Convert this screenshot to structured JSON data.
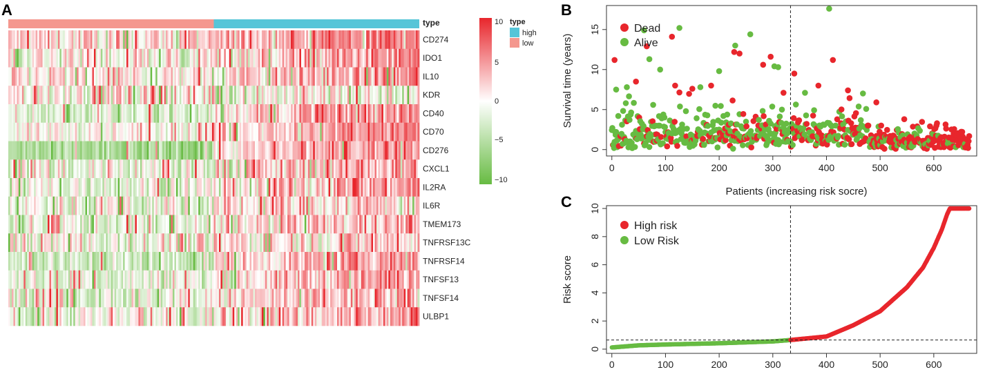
{
  "panels": {
    "a": "A",
    "b": "B",
    "c": "C"
  },
  "colors": {
    "high": "#56c5d8",
    "low": "#f4978e",
    "red": "#e8262c",
    "green": "#67bb42",
    "neutral": "#ffffff"
  },
  "chart_data": [
    {
      "type": "heatmap",
      "panel": "A",
      "annotation_label": "type",
      "type_legend": {
        "title": "type",
        "items": [
          "high",
          "low"
        ]
      },
      "colorbar": {
        "max_label": "10",
        "mid_high_label": "5",
        "zero_label": "0",
        "mid_low_label": "−5",
        "min_label": "−10",
        "range": [
          -10,
          10
        ]
      },
      "groups": [
        {
          "name": "low",
          "fraction": 0.5
        },
        {
          "name": "high",
          "fraction": 0.5
        }
      ],
      "rows": [
        {
          "gene": "CD274",
          "low_level": 0.15,
          "high_level": 0.5,
          "noise": 0.45
        },
        {
          "gene": "IDO1",
          "low_level": 0.05,
          "high_level": 0.35,
          "noise": 0.5
        },
        {
          "gene": "IL10",
          "low_level": 0.08,
          "high_level": 0.35,
          "noise": 0.5
        },
        {
          "gene": "KDR",
          "low_level": 0.1,
          "high_level": -0.05,
          "noise": 0.6
        },
        {
          "gene": "CD40",
          "low_level": -0.2,
          "high_level": 0.5,
          "noise": 0.4
        },
        {
          "gene": "CD70",
          "low_level": 0.0,
          "high_level": 0.45,
          "noise": 0.35
        },
        {
          "gene": "CD276",
          "low_level": -0.55,
          "high_level": 0.55,
          "noise": 0.35
        },
        {
          "gene": "CXCL1",
          "low_level": -0.1,
          "high_level": 0.35,
          "noise": 0.55
        },
        {
          "gene": "IL2RA",
          "low_level": -0.1,
          "high_level": 0.4,
          "noise": 0.5
        },
        {
          "gene": "IL6R",
          "low_level": -0.05,
          "high_level": 0.25,
          "noise": 0.55
        },
        {
          "gene": "TMEM173",
          "low_level": -0.15,
          "high_level": 0.3,
          "noise": 0.5
        },
        {
          "gene": "TNFRSF13C",
          "low_level": 0.0,
          "high_level": 0.2,
          "noise": 0.55
        },
        {
          "gene": "TNFRSF14",
          "low_level": -0.3,
          "high_level": 0.5,
          "noise": 0.4
        },
        {
          "gene": "TNFSF13",
          "low_level": -0.15,
          "high_level": 0.4,
          "noise": 0.45
        },
        {
          "gene": "TNFSF14",
          "low_level": -0.1,
          "high_level": 0.3,
          "noise": 0.5
        },
        {
          "gene": "ULBP1",
          "low_level": -0.1,
          "high_level": 0.35,
          "noise": 0.5
        }
      ]
    },
    {
      "type": "scatter",
      "panel": "B",
      "title": "",
      "xlabel": "Patients (increasing risk socre)",
      "ylabel": "Survival time (years)",
      "xlim": [
        -10,
        680
      ],
      "ylim": [
        -0.8,
        18
      ],
      "xticks": [
        0,
        100,
        200,
        300,
        400,
        500,
        600
      ],
      "yticks": [
        0,
        5,
        10,
        15
      ],
      "cutoff_x": 333,
      "n_patients": 667,
      "legend": [
        {
          "name": "Dead",
          "color": "#e8262c"
        },
        {
          "name": "Alive",
          "color": "#67bb42"
        }
      ],
      "highlights": [
        {
          "x": 5,
          "y": 11.2,
          "status": "Dead"
        },
        {
          "x": 8,
          "y": 7.5,
          "status": "Alive"
        },
        {
          "x": 28,
          "y": 7.8,
          "status": "Alive"
        },
        {
          "x": 45,
          "y": 8.5,
          "status": "Dead"
        },
        {
          "x": 60,
          "y": 14.9,
          "status": "Alive"
        },
        {
          "x": 65,
          "y": 12.9,
          "status": "Dead"
        },
        {
          "x": 70,
          "y": 11.3,
          "status": "Alive"
        },
        {
          "x": 90,
          "y": 10.0,
          "status": "Alive"
        },
        {
          "x": 112,
          "y": 14.1,
          "status": "Dead"
        },
        {
          "x": 126,
          "y": 15.2,
          "status": "Alive"
        },
        {
          "x": 118,
          "y": 8.0,
          "status": "Dead"
        },
        {
          "x": 150,
          "y": 7.6,
          "status": "Dead"
        },
        {
          "x": 165,
          "y": 7.8,
          "status": "Alive"
        },
        {
          "x": 185,
          "y": 8.0,
          "status": "Dead"
        },
        {
          "x": 200,
          "y": 9.8,
          "status": "Alive"
        },
        {
          "x": 228,
          "y": 12.2,
          "status": "Dead"
        },
        {
          "x": 230,
          "y": 13.0,
          "status": "Alive"
        },
        {
          "x": 238,
          "y": 12.0,
          "status": "Dead"
        },
        {
          "x": 258,
          "y": 14.4,
          "status": "Alive"
        },
        {
          "x": 282,
          "y": 10.6,
          "status": "Dead"
        },
        {
          "x": 296,
          "y": 11.6,
          "status": "Dead"
        },
        {
          "x": 303,
          "y": 10.4,
          "status": "Alive"
        },
        {
          "x": 310,
          "y": 10.3,
          "status": "Alive"
        },
        {
          "x": 320,
          "y": 7.1,
          "status": "Dead"
        },
        {
          "x": 340,
          "y": 9.5,
          "status": "Dead"
        },
        {
          "x": 385,
          "y": 8.0,
          "status": "Dead"
        },
        {
          "x": 405,
          "y": 17.6,
          "status": "Alive"
        },
        {
          "x": 412,
          "y": 11.2,
          "status": "Dead"
        },
        {
          "x": 440,
          "y": 7.4,
          "status": "Dead"
        },
        {
          "x": 493,
          "y": 5.9,
          "status": "Dead"
        },
        {
          "x": 545,
          "y": 3.8,
          "status": "Dead"
        },
        {
          "x": 605,
          "y": 3.0,
          "status": "Dead"
        }
      ]
    },
    {
      "type": "scatter",
      "panel": "C",
      "title": "",
      "xlabel": "",
      "ylabel": "Risk score",
      "xlim": [
        -10,
        680
      ],
      "ylim": [
        -0.3,
        10.2
      ],
      "xticks": [
        0,
        100,
        200,
        300,
        400,
        500,
        600
      ],
      "yticks": [
        0,
        2,
        4,
        6,
        8,
        10
      ],
      "cutoff_x": 333,
      "cutoff_y": 0.65,
      "n_patients": 667,
      "max_score": 10,
      "legend": [
        {
          "name": "High risk",
          "color": "#e8262c"
        },
        {
          "name": "Low Risk",
          "color": "#67bb42"
        }
      ],
      "curve": [
        {
          "x": 0,
          "y": 0.12
        },
        {
          "x": 50,
          "y": 0.27
        },
        {
          "x": 100,
          "y": 0.33
        },
        {
          "x": 200,
          "y": 0.42
        },
        {
          "x": 300,
          "y": 0.55
        },
        {
          "x": 333,
          "y": 0.65
        },
        {
          "x": 400,
          "y": 0.9
        },
        {
          "x": 450,
          "y": 1.7
        },
        {
          "x": 500,
          "y": 2.7
        },
        {
          "x": 550,
          "y": 4.4
        },
        {
          "x": 580,
          "y": 5.8
        },
        {
          "x": 600,
          "y": 7.2
        },
        {
          "x": 615,
          "y": 8.5
        },
        {
          "x": 625,
          "y": 9.6
        },
        {
          "x": 630,
          "y": 10
        },
        {
          "x": 667,
          "y": 10
        }
      ]
    }
  ]
}
